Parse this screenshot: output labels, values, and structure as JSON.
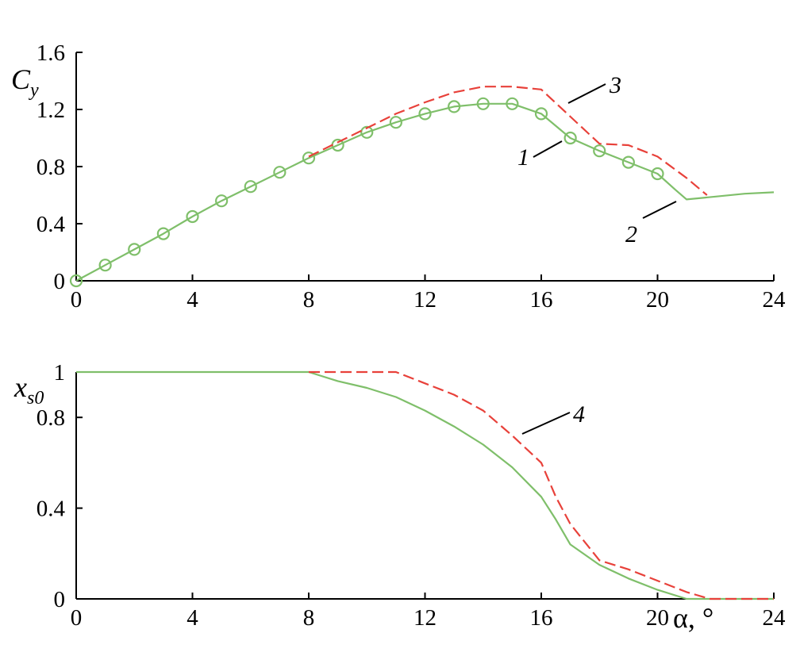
{
  "chart_data": [
    {
      "type": "line",
      "ylabel_main": "C",
      "ylabel_sub": "y",
      "xlim": [
        0,
        24
      ],
      "ylim": [
        0,
        1.6
      ],
      "xticks": [
        0,
        4,
        8,
        12,
        16,
        20,
        24
      ],
      "yticks": [
        0,
        0.4,
        0.8,
        1.2,
        1.6
      ],
      "xtick_labels": [
        "0",
        "4",
        "8",
        "12",
        "16",
        "20",
        "24"
      ],
      "ytick_labels": [
        "0",
        "0.4",
        "0.8",
        "1.2",
        "1.6"
      ],
      "series": [
        {
          "name": "1",
          "style": "markers",
          "color": "#7fbf6a",
          "x": [
            0,
            1,
            2,
            3,
            4,
            5,
            6,
            7,
            8,
            9,
            10,
            11,
            12,
            13,
            14,
            15,
            16,
            17,
            18,
            19,
            20
          ],
          "y": [
            0.0,
            0.11,
            0.22,
            0.33,
            0.45,
            0.56,
            0.66,
            0.76,
            0.86,
            0.95,
            1.04,
            1.11,
            1.17,
            1.22,
            1.24,
            1.24,
            1.17,
            1.0,
            0.91,
            0.83,
            0.75
          ]
        },
        {
          "name": "2",
          "style": "solid",
          "color": "#7fbf6a",
          "x": [
            0,
            1,
            2,
            3,
            4,
            5,
            6,
            7,
            8,
            9,
            10,
            11,
            12,
            13,
            14,
            15,
            16,
            17,
            18,
            19,
            20,
            20.6,
            21,
            22,
            23,
            24
          ],
          "y": [
            0.0,
            0.11,
            0.22,
            0.33,
            0.45,
            0.56,
            0.66,
            0.76,
            0.86,
            0.95,
            1.04,
            1.11,
            1.17,
            1.22,
            1.24,
            1.24,
            1.17,
            1.0,
            0.91,
            0.83,
            0.75,
            0.64,
            0.57,
            0.59,
            0.61,
            0.62
          ]
        },
        {
          "name": "3",
          "style": "dashed",
          "color": "#e8413a",
          "x": [
            8,
            9,
            10,
            11,
            12,
            13,
            14,
            15,
            16,
            17,
            18,
            19,
            20,
            21,
            21.7
          ],
          "y": [
            0.87,
            0.97,
            1.07,
            1.17,
            1.25,
            1.32,
            1.36,
            1.36,
            1.34,
            1.15,
            0.96,
            0.95,
            0.87,
            0.72,
            0.6
          ]
        }
      ],
      "annotations": [
        {
          "text": "3",
          "x": 17.8,
          "y": 1.35
        },
        {
          "text": "1",
          "x": 15.6,
          "y": 0.93
        },
        {
          "text": "2",
          "x": 19.1,
          "y": 0.3
        }
      ]
    },
    {
      "type": "line",
      "ylabel_main": "x",
      "ylabel_sub": "s0",
      "xlabel": "α, °",
      "xlim": [
        0,
        24
      ],
      "ylim": [
        0,
        1
      ],
      "xticks": [
        0,
        4,
        8,
        12,
        16,
        20,
        24
      ],
      "yticks": [
        0,
        0.4,
        0.8,
        1
      ],
      "xtick_labels": [
        "0",
        "4",
        "8",
        "12",
        "16",
        "20",
        "24"
      ],
      "ytick_labels": [
        "0",
        "0.4",
        "0.8",
        "1"
      ],
      "series": [
        {
          "name": "",
          "style": "solid",
          "color": "#7fbf6a",
          "x": [
            0,
            8,
            9,
            10,
            11,
            12,
            13,
            14,
            15,
            16,
            16.5,
            17,
            18,
            19,
            20,
            21,
            24
          ],
          "y": [
            1,
            1,
            0.96,
            0.93,
            0.89,
            0.83,
            0.76,
            0.68,
            0.58,
            0.45,
            0.35,
            0.24,
            0.15,
            0.09,
            0.04,
            0.0,
            0.0
          ]
        },
        {
          "name": "4",
          "style": "dashed",
          "color": "#e8413a",
          "x": [
            8,
            9,
            10,
            11,
            12,
            13,
            14,
            15,
            16,
            16.5,
            17,
            18,
            19,
            20,
            21,
            21.8,
            24
          ],
          "y": [
            1,
            1,
            1,
            1,
            0.95,
            0.9,
            0.83,
            0.72,
            0.6,
            0.45,
            0.33,
            0.17,
            0.13,
            0.08,
            0.03,
            0.0,
            0.0
          ]
        }
      ],
      "annotations": [
        {
          "text": "4",
          "x": 17.6,
          "y": 0.82
        }
      ]
    }
  ]
}
